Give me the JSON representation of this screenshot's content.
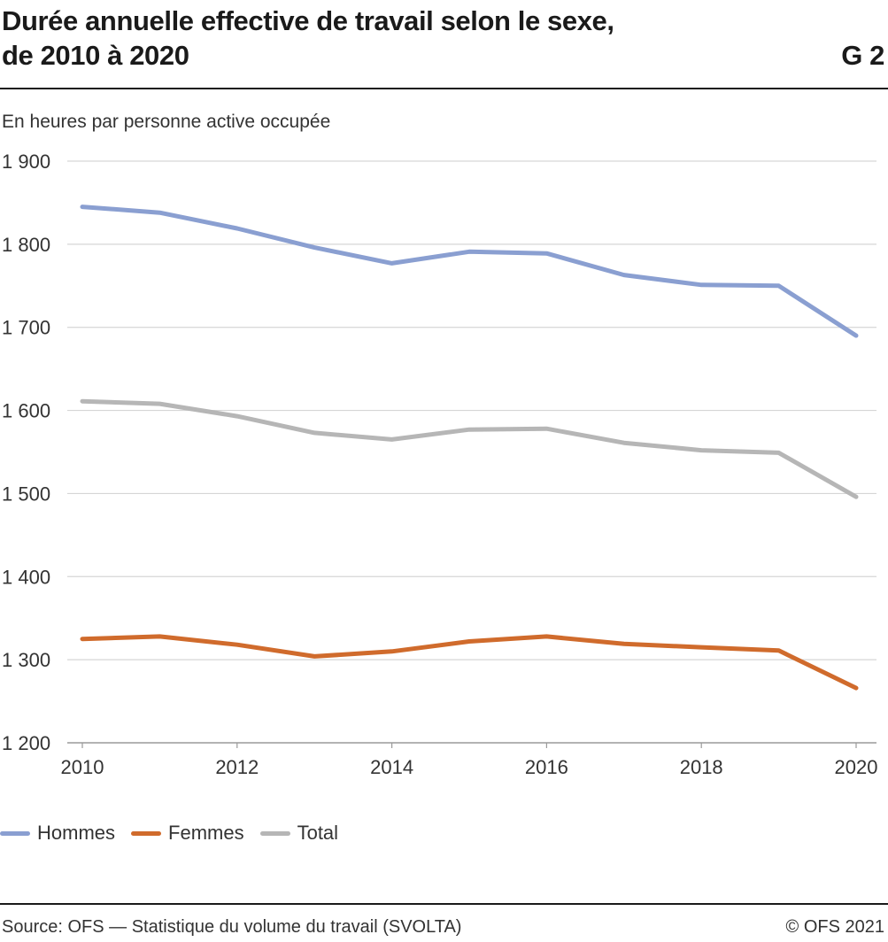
{
  "header": {
    "title_line1": "Durée annuelle effective de travail selon le sexe,",
    "title_line2": "de 2010 à 2020",
    "chart_id": "G 2"
  },
  "chart_data": {
    "type": "line",
    "ylabel": "En heures par personne active occupée",
    "ylim": [
      1200,
      1900
    ],
    "yticks": [
      1200,
      1300,
      1400,
      1500,
      1600,
      1700,
      1800,
      1900
    ],
    "ytick_labels": [
      "1 200",
      "1 300",
      "1 400",
      "1 500",
      "1 600",
      "1 700",
      "1 800",
      "1 900"
    ],
    "xlim": [
      2010,
      2020
    ],
    "xticks": [
      2010,
      2012,
      2014,
      2016,
      2018,
      2020
    ],
    "xtick_labels": [
      "2010",
      "2012",
      "2014",
      "2016",
      "2018",
      "2020"
    ],
    "x": [
      2010,
      2011,
      2012,
      2013,
      2014,
      2015,
      2016,
      2017,
      2018,
      2019,
      2020
    ],
    "grid": true,
    "legend_position": "bottom-left",
    "series": [
      {
        "name": "Hommes",
        "color": "#8a9fd1",
        "values": [
          1845,
          1838,
          1819,
          1796,
          1777,
          1791,
          1789,
          1763,
          1751,
          1750,
          1690
        ]
      },
      {
        "name": "Femmes",
        "color": "#d06b2c",
        "values": [
          1325,
          1328,
          1318,
          1304,
          1310,
          1322,
          1328,
          1319,
          1315,
          1311,
          1266
        ]
      },
      {
        "name": "Total",
        "color": "#b6b6b6",
        "values": [
          1611,
          1608,
          1593,
          1573,
          1565,
          1577,
          1578,
          1561,
          1552,
          1549,
          1496
        ]
      }
    ]
  },
  "footer": {
    "source": "Source: OFS — Statistique du volume du travail (SVOLTA)",
    "copyright": "© OFS 2021"
  }
}
